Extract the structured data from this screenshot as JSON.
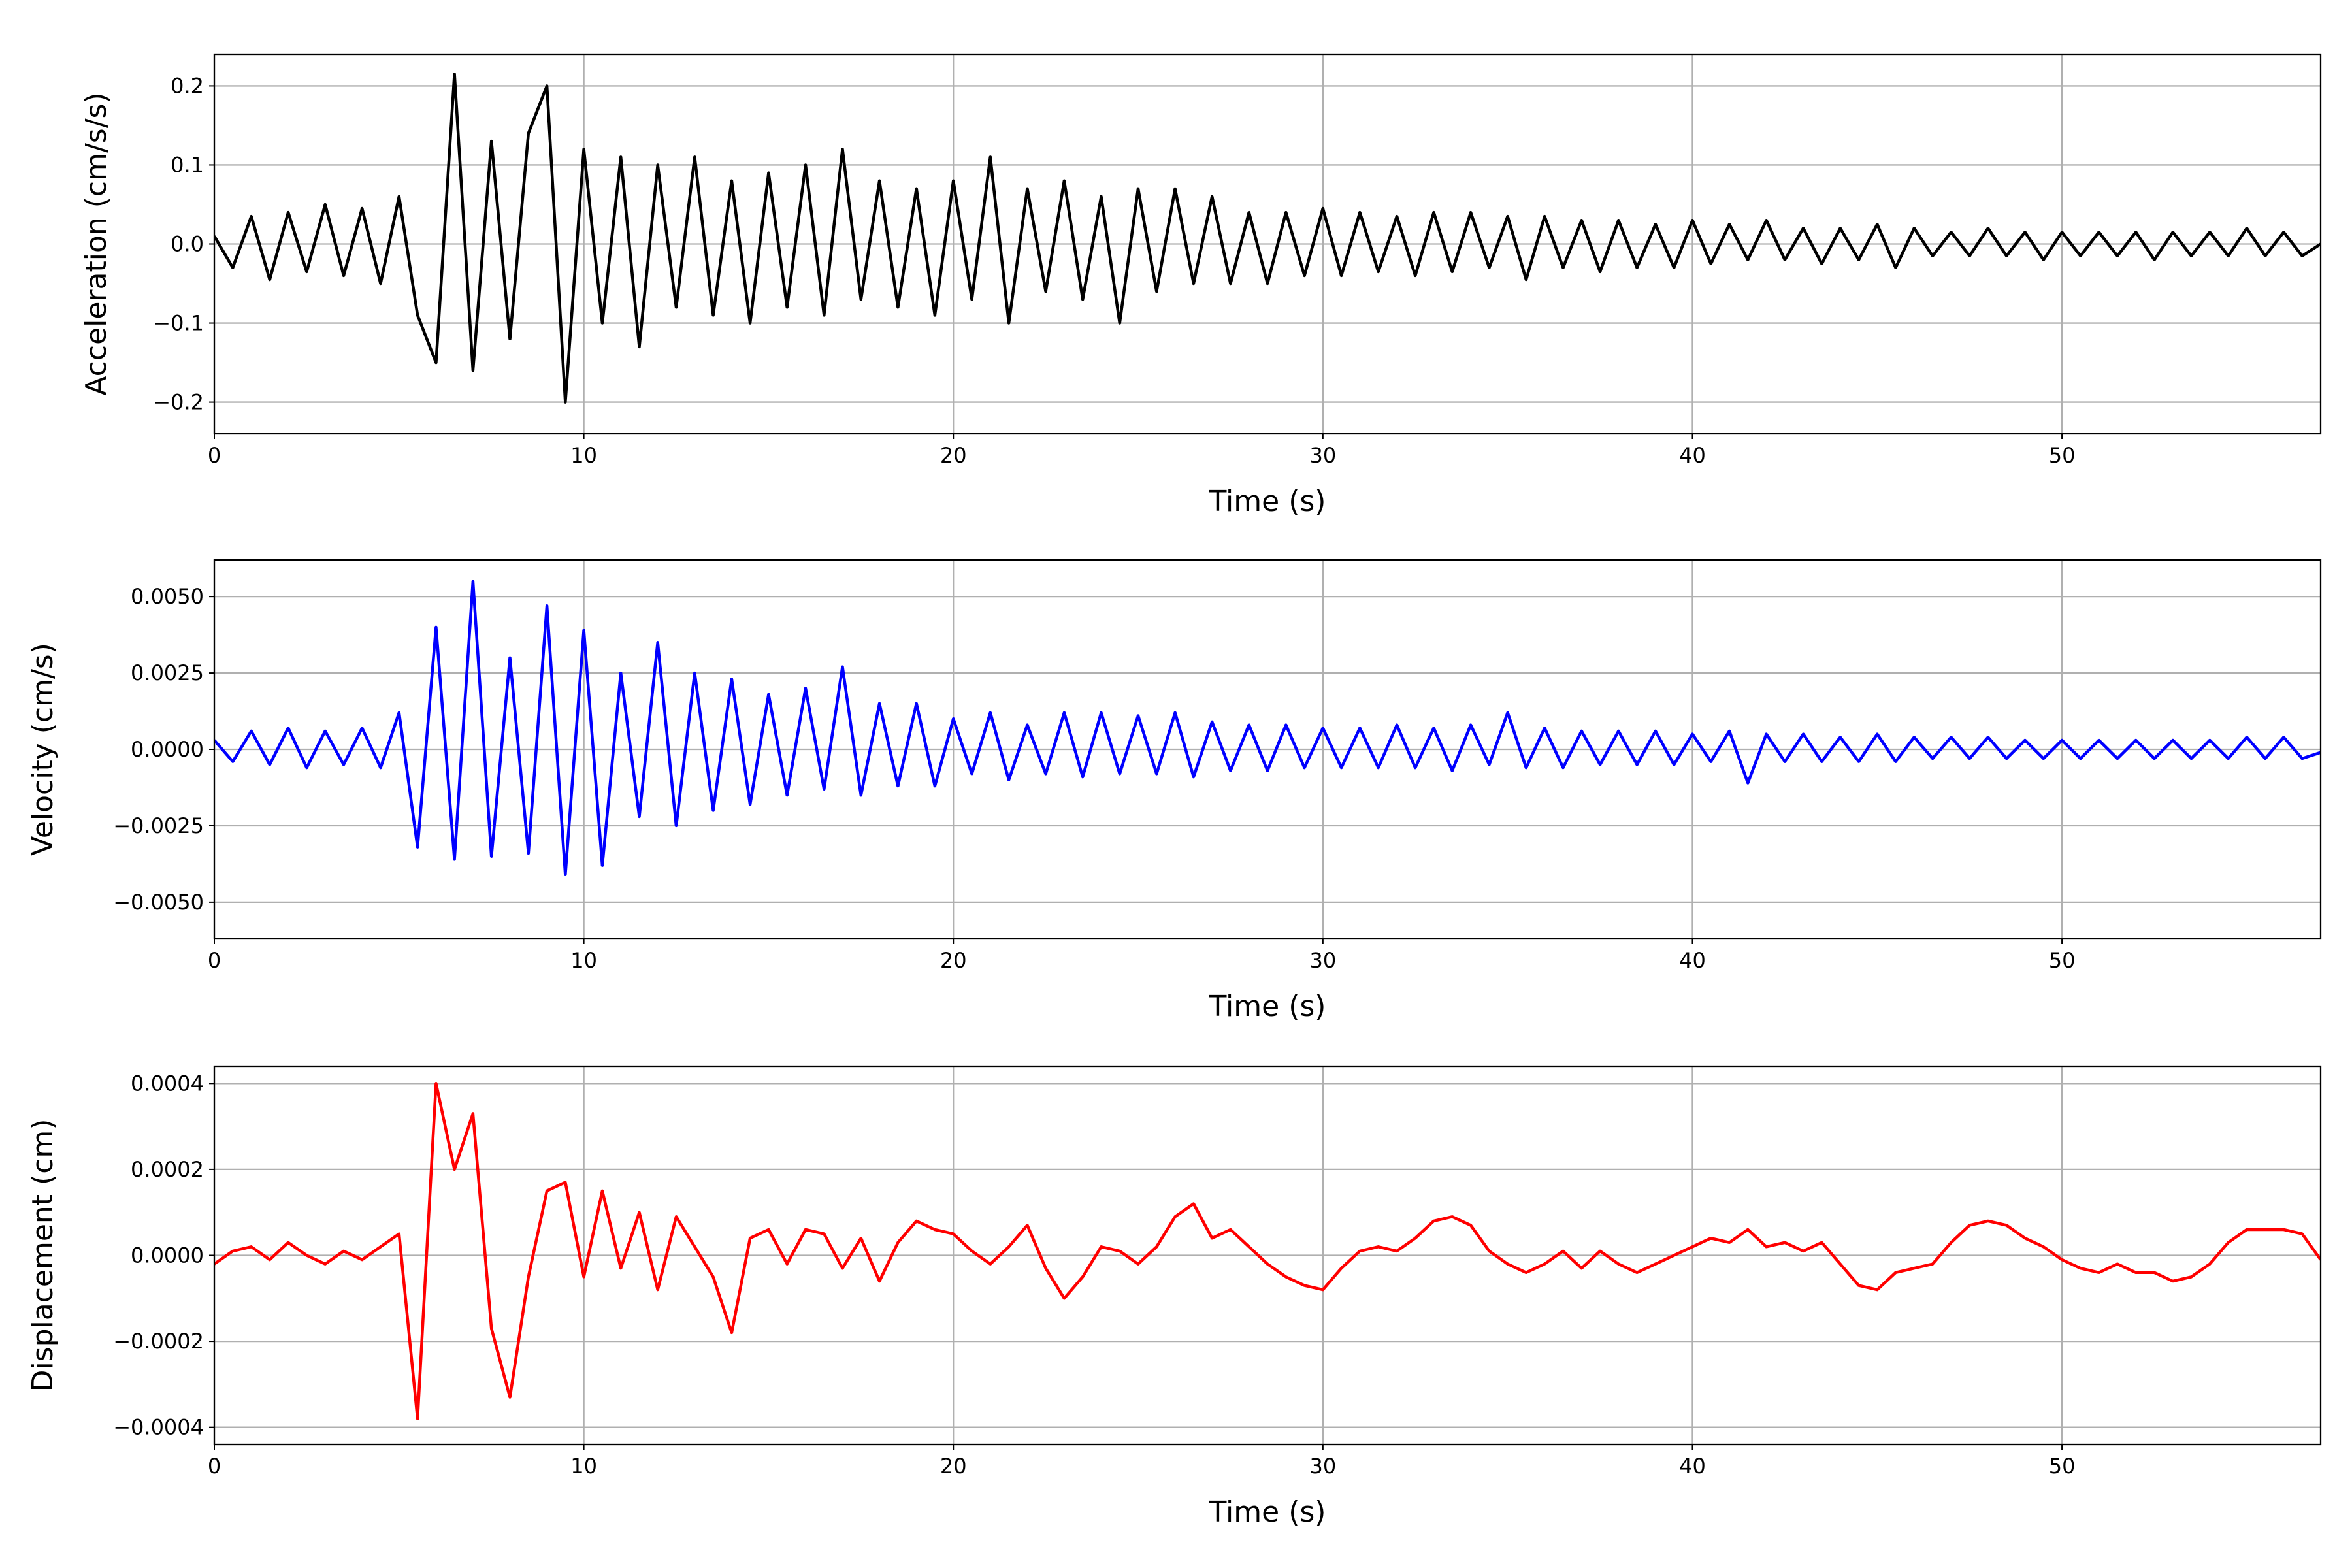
{
  "chart_data": [
    {
      "type": "line",
      "xlabel": "Time (s)",
      "ylabel": "Acceleration (cm/s/s)",
      "color": "#000000",
      "grid": true,
      "xlim": [
        0,
        57
      ],
      "xticks": [
        0,
        10,
        20,
        30,
        40,
        50
      ],
      "ylim": [
        -0.24,
        0.24
      ],
      "yticks": [
        {
          "value": -0.2,
          "label": "−0.2"
        },
        {
          "value": -0.1,
          "label": "−0.1"
        },
        {
          "value": 0,
          "label": "0.0"
        },
        0.1,
        0.2
      ],
      "x": [
        0,
        0.5,
        1,
        1.5,
        2,
        2.5,
        3,
        3.5,
        4,
        4.5,
        5,
        5.5,
        6,
        6.5,
        7,
        7.5,
        8,
        8.5,
        9,
        9.5,
        10,
        10.5,
        11,
        11.5,
        12,
        12.5,
        13,
        13.5,
        14,
        14.5,
        15,
        15.5,
        16,
        16.5,
        17,
        17.5,
        18,
        18.5,
        19,
        19.5,
        20,
        20.5,
        21,
        21.5,
        22,
        22.5,
        23,
        23.5,
        24,
        24.5,
        25,
        25.5,
        26,
        26.5,
        27,
        27.5,
        28,
        28.5,
        29,
        29.5,
        30,
        30.5,
        31,
        31.5,
        32,
        32.5,
        33,
        33.5,
        34,
        34.5,
        35,
        35.5,
        36,
        36.5,
        37,
        37.5,
        38,
        38.5,
        39,
        39.5,
        40,
        40.5,
        41,
        41.5,
        42,
        42.5,
        43,
        43.5,
        44,
        44.5,
        45,
        45.5,
        46,
        46.5,
        47,
        47.5,
        48,
        48.5,
        49,
        49.5,
        50,
        50.5,
        51,
        51.5,
        52,
        52.5,
        53,
        53.5,
        54,
        54.5,
        55,
        55.5,
        56,
        56.5,
        57
      ],
      "values": [
        0.01,
        -0.03,
        0.035,
        -0.045,
        0.04,
        -0.035,
        0.05,
        -0.04,
        0.045,
        -0.05,
        0.06,
        -0.09,
        -0.15,
        0.215,
        -0.16,
        0.13,
        -0.12,
        0.14,
        0.2,
        -0.2,
        0.12,
        -0.1,
        0.11,
        -0.13,
        0.1,
        -0.08,
        0.11,
        -0.09,
        0.08,
        -0.1,
        0.09,
        -0.08,
        0.1,
        -0.09,
        0.12,
        -0.07,
        0.08,
        -0.08,
        0.07,
        -0.09,
        0.08,
        -0.07,
        0.11,
        -0.1,
        0.07,
        -0.06,
        0.08,
        -0.07,
        0.06,
        -0.1,
        0.07,
        -0.06,
        0.07,
        -0.05,
        0.06,
        -0.05,
        0.04,
        -0.05,
        0.04,
        -0.04,
        0.045,
        -0.04,
        0.04,
        -0.035,
        0.035,
        -0.04,
        0.04,
        -0.035,
        0.04,
        -0.03,
        0.035,
        -0.045,
        0.035,
        -0.03,
        0.03,
        -0.035,
        0.03,
        -0.03,
        0.025,
        -0.03,
        0.03,
        -0.025,
        0.025,
        -0.02,
        0.03,
        -0.02,
        0.02,
        -0.025,
        0.02,
        -0.02,
        0.025,
        -0.03,
        0.02,
        -0.015,
        0.015,
        -0.015,
        0.02,
        -0.015,
        0.015,
        -0.02,
        0.015,
        -0.015,
        0.015,
        -0.015,
        0.015,
        -0.02,
        0.015,
        -0.015,
        0.015,
        -0.015,
        0.02,
        -0.015,
        0.015,
        -0.015,
        0
      ]
    },
    {
      "type": "line",
      "xlabel": "Time (s)",
      "ylabel": "Velocity (cm/s)",
      "color": "#0000ff",
      "grid": true,
      "xlim": [
        0,
        57
      ],
      "xticks": [
        0,
        10,
        20,
        30,
        40,
        50
      ],
      "ylim": [
        -0.0062,
        0.0062
      ],
      "yticks": [
        {
          "value": -0.005,
          "label": "−0.0050"
        },
        {
          "value": -0.0025,
          "label": "−0.0025"
        },
        {
          "value": 0,
          "label": "0.0000"
        },
        {
          "value": 0.0025,
          "label": "0.0025"
        },
        {
          "value": 0.005,
          "label": "0.0050"
        }
      ],
      "x": [
        0,
        0.5,
        1,
        1.5,
        2,
        2.5,
        3,
        3.5,
        4,
        4.5,
        5,
        5.5,
        6,
        6.5,
        7,
        7.5,
        8,
        8.5,
        9,
        9.5,
        10,
        10.5,
        11,
        11.5,
        12,
        12.5,
        13,
        13.5,
        14,
        14.5,
        15,
        15.5,
        16,
        16.5,
        17,
        17.5,
        18,
        18.5,
        19,
        19.5,
        20,
        20.5,
        21,
        21.5,
        22,
        22.5,
        23,
        23.5,
        24,
        24.5,
        25,
        25.5,
        26,
        26.5,
        27,
        27.5,
        28,
        28.5,
        29,
        29.5,
        30,
        30.5,
        31,
        31.5,
        32,
        32.5,
        33,
        33.5,
        34,
        34.5,
        35,
        35.5,
        36,
        36.5,
        37,
        37.5,
        38,
        38.5,
        39,
        39.5,
        40,
        40.5,
        41,
        41.5,
        42,
        42.5,
        43,
        43.5,
        44,
        44.5,
        45,
        45.5,
        46,
        46.5,
        47,
        47.5,
        48,
        48.5,
        49,
        49.5,
        50,
        50.5,
        51,
        51.5,
        52,
        52.5,
        53,
        53.5,
        54,
        54.5,
        55,
        55.5,
        56,
        56.5,
        57
      ],
      "values": [
        0.0003,
        -0.0004,
        0.0006,
        -0.0005,
        0.0007,
        -0.0006,
        0.0006,
        -0.0005,
        0.0007,
        -0.0006,
        0.0012,
        -0.0032,
        0.004,
        -0.0036,
        0.0055,
        -0.0035,
        0.003,
        -0.0034,
        0.0047,
        -0.0041,
        0.0039,
        -0.0038,
        0.0025,
        -0.0022,
        0.0035,
        -0.0025,
        0.0025,
        -0.002,
        0.0023,
        -0.0018,
        0.0018,
        -0.0015,
        0.002,
        -0.0013,
        0.0027,
        -0.0015,
        0.0015,
        -0.0012,
        0.0015,
        -0.0012,
        0.001,
        -0.0008,
        0.0012,
        -0.001,
        0.0008,
        -0.0008,
        0.0012,
        -0.0009,
        0.0012,
        -0.0008,
        0.0011,
        -0.0008,
        0.0012,
        -0.0009,
        0.0009,
        -0.0007,
        0.0008,
        -0.0007,
        0.0008,
        -0.0006,
        0.0007,
        -0.0006,
        0.0007,
        -0.0006,
        0.0008,
        -0.0006,
        0.0007,
        -0.0007,
        0.0008,
        -0.0005,
        0.0012,
        -0.0006,
        0.0007,
        -0.0006,
        0.0006,
        -0.0005,
        0.0006,
        -0.0005,
        0.0006,
        -0.0005,
        0.0005,
        -0.0004,
        0.0006,
        -0.0011,
        0.0005,
        -0.0004,
        0.0005,
        -0.0004,
        0.0004,
        -0.0004,
        0.0005,
        -0.0004,
        0.0004,
        -0.0003,
        0.0004,
        -0.0003,
        0.0004,
        -0.0003,
        0.0003,
        -0.0003,
        0.0003,
        -0.0003,
        0.0003,
        -0.0003,
        0.0003,
        -0.0003,
        0.0003,
        -0.0003,
        0.0003,
        -0.0003,
        0.0004,
        -0.0003,
        0.0004,
        -0.0003,
        -0.0001
      ]
    },
    {
      "type": "line",
      "xlabel": "Time (s)",
      "ylabel": "Displacement (cm)",
      "color": "#ff0000",
      "grid": true,
      "xlim": [
        0,
        57
      ],
      "xticks": [
        0,
        10,
        20,
        30,
        40,
        50
      ],
      "ylim": [
        -0.00044,
        0.00044
      ],
      "yticks": [
        {
          "value": -0.0004,
          "label": "−0.0004"
        },
        {
          "value": -0.0002,
          "label": "−0.0002"
        },
        {
          "value": 0,
          "label": "0.0000"
        },
        0.0002,
        0.0004
      ],
      "x": [
        0,
        0.5,
        1,
        1.5,
        2,
        2.5,
        3,
        3.5,
        4,
        4.5,
        5,
        5.5,
        6,
        6.5,
        7,
        7.5,
        8,
        8.5,
        9,
        9.5,
        10,
        10.5,
        11,
        11.5,
        12,
        12.5,
        13,
        13.5,
        14,
        14.5,
        15,
        15.5,
        16,
        16.5,
        17,
        17.5,
        18,
        18.5,
        19,
        19.5,
        20,
        20.5,
        21,
        21.5,
        22,
        22.5,
        23,
        23.5,
        24,
        24.5,
        25,
        25.5,
        26,
        26.5,
        27,
        27.5,
        28,
        28.5,
        29,
        29.5,
        30,
        30.5,
        31,
        31.5,
        32,
        32.5,
        33,
        33.5,
        34,
        34.5,
        35,
        35.5,
        36,
        36.5,
        37,
        37.5,
        38,
        38.5,
        39,
        39.5,
        40,
        40.5,
        41,
        41.5,
        42,
        42.5,
        43,
        43.5,
        44,
        44.5,
        45,
        45.5,
        46,
        46.5,
        47,
        47.5,
        48,
        48.5,
        49,
        49.5,
        50,
        50.5,
        51,
        51.5,
        52,
        52.5,
        53,
        53.5,
        54,
        54.5,
        55,
        55.5,
        56,
        56.5,
        57
      ],
      "values": [
        -2e-05,
        1e-05,
        2e-05,
        -1e-05,
        3e-05,
        0,
        -2e-05,
        1e-05,
        -1e-05,
        2e-05,
        5e-05,
        -0.00038,
        0.0004,
        0.0002,
        0.00033,
        -0.00017,
        -0.00033,
        -5e-05,
        0.00015,
        0.00017,
        -5e-05,
        0.00015,
        -3e-05,
        0.0001,
        -8e-05,
        9e-05,
        2e-05,
        -5e-05,
        -0.00018,
        4e-05,
        6e-05,
        -2e-05,
        6e-05,
        5e-05,
        -3e-05,
        4e-05,
        -6e-05,
        3e-05,
        8e-05,
        6e-05,
        5e-05,
        1e-05,
        -2e-05,
        2e-05,
        7e-05,
        -3e-05,
        -0.0001,
        -5e-05,
        2e-05,
        1e-05,
        -2e-05,
        2e-05,
        9e-05,
        0.00012,
        4e-05,
        6e-05,
        2e-05,
        -2e-05,
        -5e-05,
        -7e-05,
        -8e-05,
        -3e-05,
        1e-05,
        2e-05,
        1e-05,
        4e-05,
        8e-05,
        9e-05,
        7e-05,
        1e-05,
        -2e-05,
        -4e-05,
        -2e-05,
        1e-05,
        -3e-05,
        1e-05,
        -2e-05,
        -4e-05,
        -2e-05,
        0,
        2e-05,
        4e-05,
        3e-05,
        6e-05,
        2e-05,
        3e-05,
        1e-05,
        3e-05,
        -2e-05,
        -7e-05,
        -8e-05,
        -4e-05,
        -3e-05,
        -2e-05,
        3e-05,
        7e-05,
        8e-05,
        7e-05,
        4e-05,
        2e-05,
        -1e-05,
        -3e-05,
        -4e-05,
        -2e-05,
        -4e-05,
        -4e-05,
        -6e-05,
        -5e-05,
        -2e-05,
        3e-05,
        6e-05,
        6e-05,
        6e-05,
        5e-05,
        -1e-05
      ]
    }
  ]
}
